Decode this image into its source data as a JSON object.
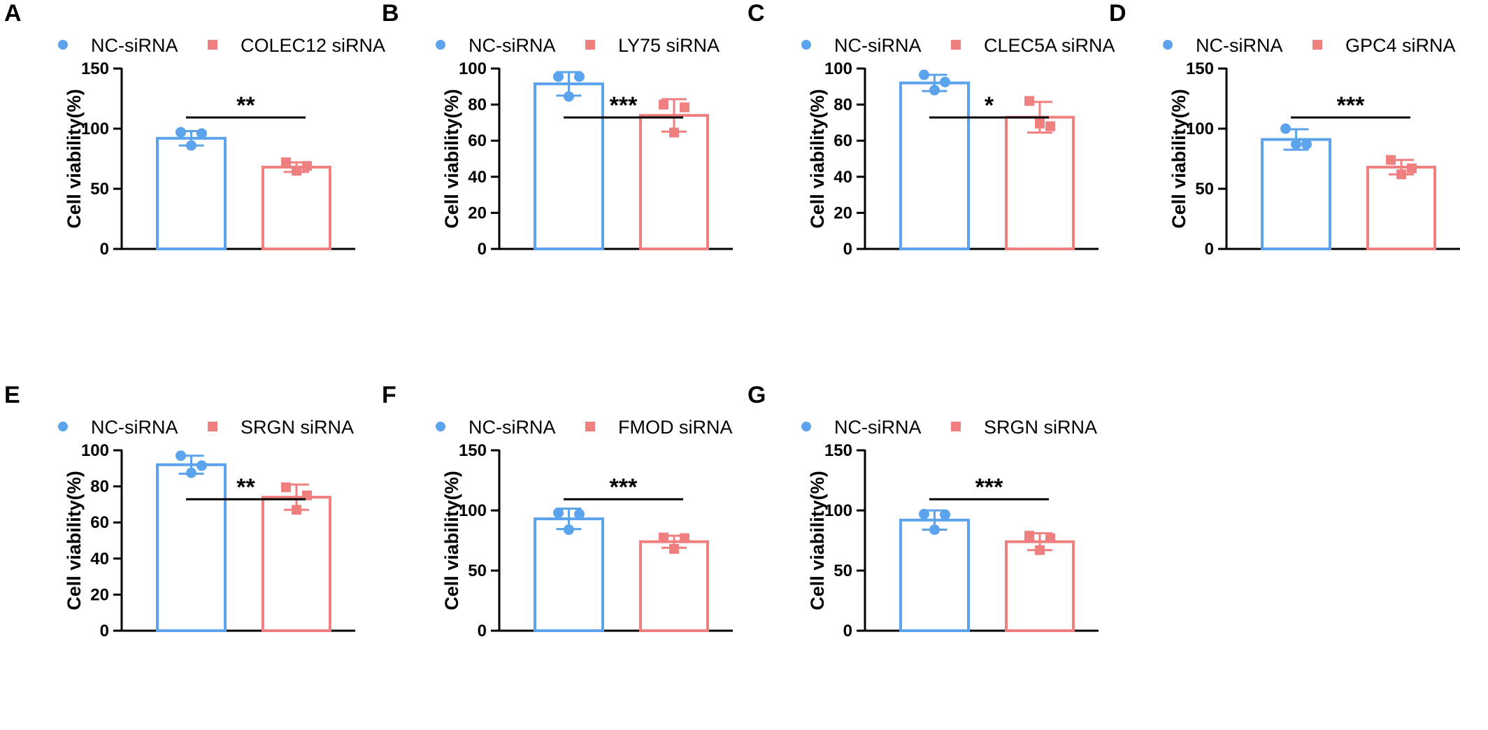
{
  "colors": {
    "nc": "#5ba3ec",
    "si": "#f07f80",
    "axis": "#000000"
  },
  "chart_data": [
    {
      "type": "bar",
      "panel": "A",
      "ylabel": "Cell viability(%)",
      "ylim": [
        0,
        150
      ],
      "ticks": [
        "0",
        "50",
        "100",
        "150"
      ],
      "tick_values": [
        0,
        50,
        100,
        150
      ],
      "significance": "**",
      "series": [
        {
          "name": "NC-siRNA",
          "marker": "circle",
          "mean": 92,
          "sd": 6,
          "points": [
            97,
            96,
            86
          ]
        },
        {
          "name": "COLEC12 siRNA",
          "marker": "square",
          "mean": 68,
          "sd": 4,
          "points": [
            72,
            69,
            65
          ]
        }
      ]
    },
    {
      "type": "bar",
      "panel": "B",
      "ylabel": "Cell viability(%)",
      "ylim": [
        0,
        100
      ],
      "ticks": [
        "0",
        "20",
        "40",
        "60",
        "80",
        "100"
      ],
      "tick_values": [
        0,
        20,
        40,
        60,
        80,
        100
      ],
      "significance": "***",
      "series": [
        {
          "name": "NC-siRNA",
          "marker": "circle",
          "mean": 91.5,
          "sd": 6.5,
          "points": [
            95.5,
            95.5,
            84.5
          ]
        },
        {
          "name": "LY75 siRNA",
          "marker": "square",
          "mean": 74,
          "sd": 9,
          "points": [
            80,
            78.5,
            64.5
          ]
        }
      ]
    },
    {
      "type": "bar",
      "panel": "C",
      "ylabel": "Cell viability(%)",
      "ylim": [
        0,
        100
      ],
      "ticks": [
        "0",
        "20",
        "40",
        "60",
        "80",
        "100"
      ],
      "tick_values": [
        0,
        20,
        40,
        60,
        80,
        100
      ],
      "significance": "*",
      "series": [
        {
          "name": "NC-siRNA",
          "marker": "circle",
          "mean": 92,
          "sd": 4.5,
          "points": [
            96.5,
            92.5,
            88
          ]
        },
        {
          "name": "CLEC5A siRNA",
          "marker": "square",
          "mean": 73,
          "sd": 8.5,
          "points": [
            82,
            68,
            69.5
          ]
        }
      ]
    },
    {
      "type": "bar",
      "panel": "D",
      "ylabel": "Cell viability(%)",
      "ylim": [
        0,
        150
      ],
      "ticks": [
        "0",
        "50",
        "100",
        "150"
      ],
      "tick_values": [
        0,
        50,
        100,
        150
      ],
      "significance": "***",
      "series": [
        {
          "name": "NC-siRNA",
          "marker": "circle",
          "mean": 91,
          "sd": 8.5,
          "points": [
            100,
            87,
            87
          ]
        },
        {
          "name": "GPC4 siRNA",
          "marker": "square",
          "mean": 68,
          "sd": 6,
          "points": [
            74,
            67,
            62
          ]
        }
      ]
    },
    {
      "type": "bar",
      "panel": "E",
      "ylabel": "Cell viability(%)",
      "ylim": [
        0,
        100
      ],
      "ticks": [
        "0",
        "20",
        "40",
        "60",
        "80",
        "100"
      ],
      "tick_values": [
        0,
        20,
        40,
        60,
        80,
        100
      ],
      "significance": "**",
      "series": [
        {
          "name": "NC-siRNA",
          "marker": "circle",
          "mean": 92,
          "sd": 5,
          "points": [
            97,
            91.5,
            87.5
          ]
        },
        {
          "name": "SRGN siRNA",
          "marker": "square",
          "mean": 74,
          "sd": 7,
          "points": [
            79.5,
            75,
            67
          ]
        }
      ]
    },
    {
      "type": "bar",
      "panel": "F",
      "ylabel": "Cell viability(%)",
      "ylim": [
        0,
        150
      ],
      "ticks": [
        "0",
        "50",
        "100",
        "150"
      ],
      "tick_values": [
        0,
        50,
        100,
        150
      ],
      "significance": "***",
      "series": [
        {
          "name": "NC-siRNA",
          "marker": "circle",
          "mean": 93,
          "sd": 8.5,
          "points": [
            98,
            97,
            84
          ]
        },
        {
          "name": "FMOD siRNA",
          "marker": "square",
          "mean": 74,
          "sd": 5,
          "points": [
            77.5,
            77,
            68
          ]
        }
      ]
    },
    {
      "type": "bar",
      "panel": "G",
      "ylabel": "Cell viability(%)",
      "ylim": [
        0,
        150
      ],
      "ticks": [
        "0",
        "50",
        "100",
        "150"
      ],
      "tick_values": [
        0,
        50,
        100,
        150
      ],
      "significance": "***",
      "series": [
        {
          "name": "NC-siRNA",
          "marker": "circle",
          "mean": 92,
          "sd": 8,
          "points": [
            97,
            96.5,
            84
          ]
        },
        {
          "name": "SRGN siRNA",
          "marker": "square",
          "mean": 74,
          "sd": 7,
          "points": [
            79,
            77,
            67
          ]
        }
      ]
    }
  ]
}
